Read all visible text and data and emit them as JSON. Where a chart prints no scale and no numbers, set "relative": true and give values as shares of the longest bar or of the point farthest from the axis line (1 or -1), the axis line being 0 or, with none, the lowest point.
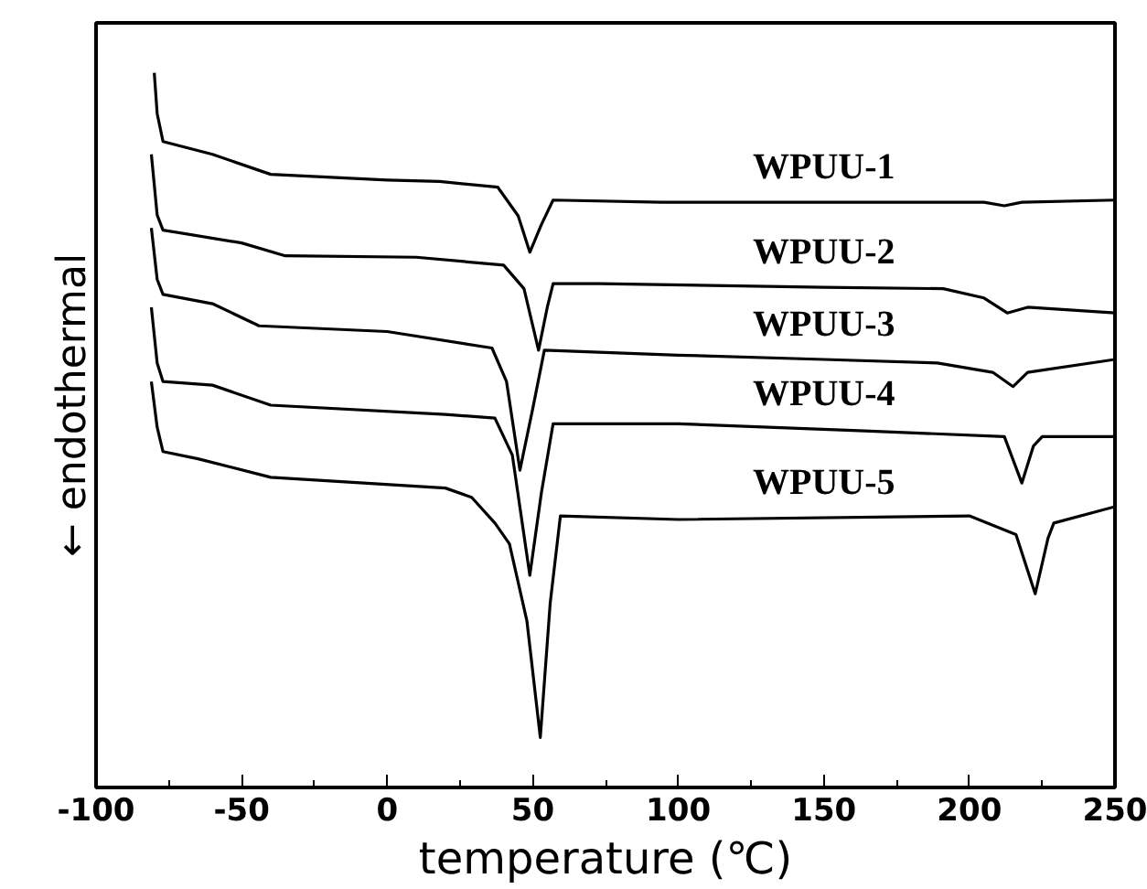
{
  "chart_data": {
    "type": "line",
    "relative": true,
    "xlabel": "temperature (℃)",
    "ylabel": "← endothermal",
    "xlim": [
      -100,
      250
    ],
    "xticks": [
      -100,
      -50,
      0,
      50,
      100,
      150,
      200,
      250
    ],
    "grid": false,
    "marker": "none",
    "line_style": "solid",
    "series": [
      {
        "name": "WPUU-1",
        "color": "#000000",
        "x": [
          -80,
          -79,
          -77,
          -60,
          -40,
          0,
          18,
          38,
          45,
          49,
          53,
          57,
          94,
          150,
          205,
          212,
          218,
          250
        ],
        "values": [
          1.0,
          0.943,
          0.904,
          0.886,
          0.858,
          0.85,
          0.848,
          0.84,
          0.8,
          0.749,
          0.788,
          0.822,
          0.819,
          0.819,
          0.819,
          0.814,
          0.819,
          0.822
        ]
      },
      {
        "name": "WPUU-2",
        "color": "#000000",
        "x": [
          -81,
          -79,
          -77,
          -50,
          -35,
          10,
          40,
          47,
          52,
          55,
          57,
          73,
          150,
          191,
          205,
          213,
          220,
          250
        ],
        "values": [
          0.886,
          0.801,
          0.78,
          0.762,
          0.744,
          0.742,
          0.731,
          0.698,
          0.612,
          0.672,
          0.705,
          0.705,
          0.7,
          0.698,
          0.685,
          0.664,
          0.672,
          0.664
        ]
      },
      {
        "name": "WPUU-3",
        "color": "#000000",
        "x": [
          -81,
          -79,
          -77,
          -60,
          -44,
          0,
          36,
          41,
          45.6,
          50,
          54,
          100,
          150,
          189,
          208,
          215,
          220,
          250
        ],
        "values": [
          0.783,
          0.711,
          0.69,
          0.677,
          0.646,
          0.638,
          0.615,
          0.568,
          0.444,
          0.53,
          0.612,
          0.605,
          0.599,
          0.594,
          0.581,
          0.561,
          0.581,
          0.599
        ]
      },
      {
        "name": "WPUU-4",
        "color": "#000000",
        "x": [
          -81,
          -79,
          -77,
          -60,
          -40,
          20,
          37,
          43,
          49,
          53,
          57,
          100,
          164,
          212,
          218,
          222,
          225,
          250
        ],
        "values": [
          0.672,
          0.594,
          0.568,
          0.563,
          0.535,
          0.522,
          0.517,
          0.465,
          0.297,
          0.413,
          0.509,
          0.509,
          0.499,
          0.491,
          0.426,
          0.478,
          0.491,
          0.491
        ]
      },
      {
        "name": "WPUU-5",
        "color": "#000000",
        "x": [
          -81,
          -79,
          -77,
          -65,
          -40,
          20,
          29,
          37,
          42,
          48,
          52.6,
          56,
          59.5,
          100,
          200,
          216,
          222.6,
          227,
          229,
          250
        ],
        "values": [
          0.568,
          0.504,
          0.47,
          0.46,
          0.434,
          0.419,
          0.406,
          0.37,
          0.341,
          0.233,
          0.07,
          0.258,
          0.38,
          0.375,
          0.38,
          0.354,
          0.271,
          0.349,
          0.37,
          0.393
        ]
      }
    ]
  }
}
